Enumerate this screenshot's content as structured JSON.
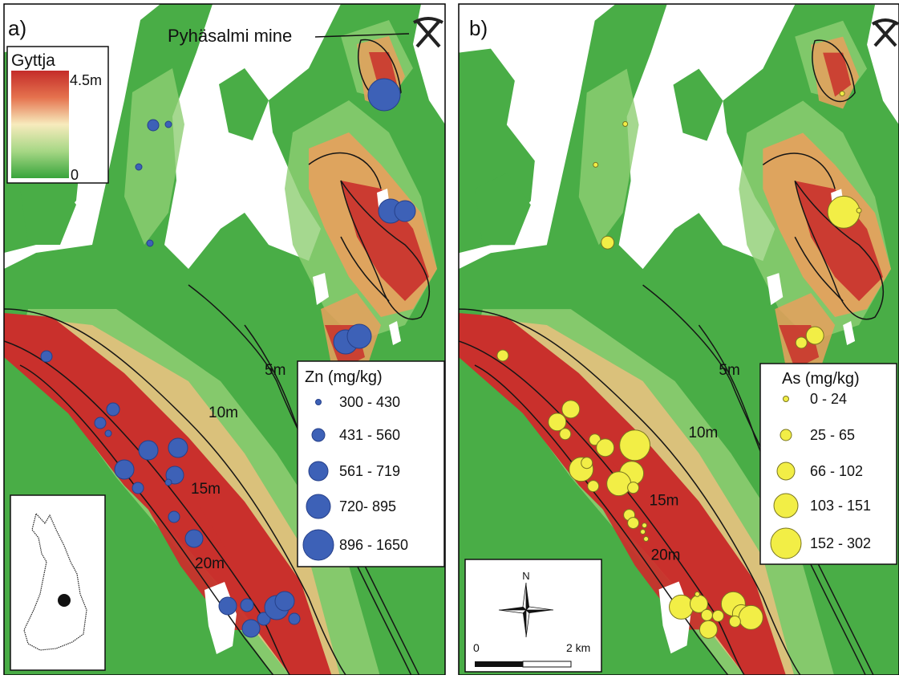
{
  "panel_a": {
    "letter": "a)",
    "mine_label": "Pyhäsalmi mine",
    "gyttja_legend": {
      "title": "Gyttja",
      "max": "4.5m",
      "min": "0"
    },
    "contours": [
      "5m",
      "10m",
      "15m",
      "20m"
    ],
    "legend": {
      "title": "Zn (mg/kg)",
      "classes": [
        "300 - 430",
        "431 - 560",
        "561 - 719",
        "720- 895",
        "896 - 1650"
      ]
    }
  },
  "panel_b": {
    "letter": "b)",
    "contours": [
      "5m",
      "10m",
      "15m",
      "20m"
    ],
    "legend": {
      "title": "As (mg/kg)",
      "classes": [
        "0 - 24",
        "25 - 65",
        "66 - 102",
        "103 - 151",
        "152 - 302"
      ]
    },
    "north_arrow": "N",
    "scale_bar": {
      "start": "0",
      "end": "2 km"
    }
  },
  "colors": {
    "gyttja_thick": "#c8302b",
    "gyttja_mid": "#f6e7b8",
    "gyttja_thin": "#3cab3f",
    "zn_symbol": "#3d61b7",
    "as_symbol": "#f2ee46"
  },
  "icons": [
    "pick-axe-icon",
    "north-arrow-icon",
    "finland-inset-map"
  ]
}
